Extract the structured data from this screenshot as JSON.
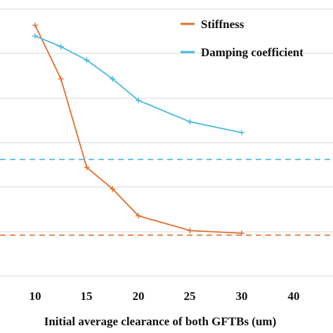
{
  "chart_data": {
    "type": "line",
    "title": "",
    "xlabel": "Initial average clearance of both GFTBs (um)",
    "ylabel": "",
    "x_ticks": [
      "10",
      "15",
      "20",
      "25",
      "30",
      "40"
    ],
    "grid": "horizontal",
    "legend": "top-right",
    "series": [
      {
        "name": "Stiffness",
        "color": "#e07030",
        "x": [
          10,
          12.5,
          15,
          17.5,
          20,
          25,
          30
        ],
        "y": [
          0.94,
          0.74,
          0.41,
          0.33,
          0.23,
          0.175,
          0.165
        ],
        "dashed_reference": 0.158
      },
      {
        "name": "Damping coefficient",
        "color": "#4ab8e0",
        "x": [
          10,
          12.5,
          15,
          17.5,
          20,
          25,
          30
        ],
        "y": [
          0.9,
          0.86,
          0.81,
          0.74,
          0.66,
          0.58,
          0.54
        ],
        "dashed_reference": 0.44
      }
    ],
    "legend_entries": [
      "Stiffness",
      "Damping coefficient"
    ]
  }
}
